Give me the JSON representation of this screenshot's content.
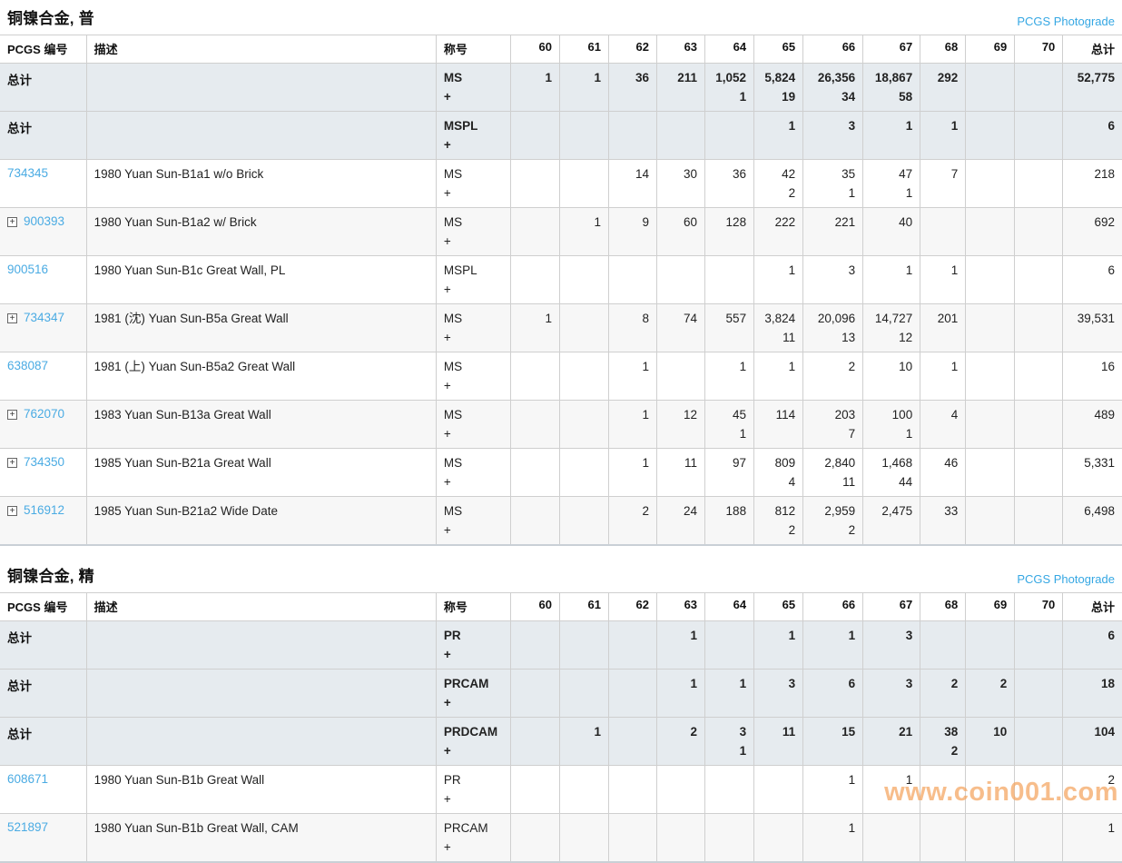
{
  "watermark": "www.coin001.com",
  "colors": {
    "link_blue": "#35a7e3",
    "id_link_blue": "#4aabe3",
    "total_row_bg": "#e6ebef",
    "stripe_bg": "#f7f7f7",
    "border": "#cfcfcf",
    "watermark_orange": "#f5a55f"
  },
  "header": {
    "id": "PCGS 编号",
    "desc": "描述",
    "designation": "称号",
    "total": "总计"
  },
  "grade_columns": [
    "60",
    "61",
    "62",
    "63",
    "64",
    "65",
    "66",
    "67",
    "68",
    "69",
    "70"
  ],
  "sections": [
    {
      "title": "铜镍合金, 普",
      "photograde_link": "PCGS Photograde",
      "rows": [
        {
          "type": "total",
          "expand": false,
          "stripe": false,
          "id_label": "总计",
          "desc": "",
          "designation": "MS",
          "plus": "+",
          "grades": [
            [
              "1",
              ""
            ],
            [
              "1",
              ""
            ],
            [
              "36",
              ""
            ],
            [
              "211",
              ""
            ],
            [
              "1,052",
              "1"
            ],
            [
              "5,824",
              "19"
            ],
            [
              "26,356",
              "34"
            ],
            [
              "18,867",
              "58"
            ],
            [
              "292",
              ""
            ],
            [
              "",
              ""
            ],
            [
              "",
              ""
            ]
          ],
          "total": "52,775"
        },
        {
          "type": "total",
          "expand": false,
          "stripe": false,
          "id_label": "总计",
          "desc": "",
          "designation": "MSPL",
          "plus": "+",
          "grades": [
            [
              "",
              ""
            ],
            [
              "",
              ""
            ],
            [
              "",
              ""
            ],
            [
              "",
              ""
            ],
            [
              "",
              ""
            ],
            [
              "1",
              ""
            ],
            [
              "3",
              ""
            ],
            [
              "1",
              ""
            ],
            [
              "1",
              ""
            ],
            [
              "",
              ""
            ],
            [
              "",
              ""
            ]
          ],
          "total": "6"
        },
        {
          "type": "item",
          "expand": false,
          "stripe": false,
          "id_label": "734345",
          "desc": "1980 Yuan Sun-B1a1 w/o Brick",
          "designation": "MS",
          "plus": "+",
          "grades": [
            [
              "",
              ""
            ],
            [
              "",
              ""
            ],
            [
              "14",
              ""
            ],
            [
              "30",
              ""
            ],
            [
              "36",
              ""
            ],
            [
              "42",
              "2"
            ],
            [
              "35",
              "1"
            ],
            [
              "47",
              "1"
            ],
            [
              "7",
              ""
            ],
            [
              "",
              ""
            ],
            [
              "",
              ""
            ]
          ],
          "total": "218"
        },
        {
          "type": "item",
          "expand": true,
          "stripe": true,
          "id_label": "900393",
          "desc": "1980 Yuan Sun-B1a2 w/ Brick",
          "designation": "MS",
          "plus": "+",
          "grades": [
            [
              "",
              ""
            ],
            [
              "1",
              ""
            ],
            [
              "9",
              ""
            ],
            [
              "60",
              ""
            ],
            [
              "128",
              ""
            ],
            [
              "222",
              ""
            ],
            [
              "221",
              ""
            ],
            [
              "40",
              ""
            ],
            [
              "",
              ""
            ],
            [
              "",
              ""
            ],
            [
              "",
              ""
            ]
          ],
          "total": "692"
        },
        {
          "type": "item",
          "expand": false,
          "stripe": false,
          "id_label": "900516",
          "desc": "1980 Yuan Sun-B1c Great Wall, PL",
          "designation": "MSPL",
          "plus": "+",
          "grades": [
            [
              "",
              ""
            ],
            [
              "",
              ""
            ],
            [
              "",
              ""
            ],
            [
              "",
              ""
            ],
            [
              "",
              ""
            ],
            [
              "1",
              ""
            ],
            [
              "3",
              ""
            ],
            [
              "1",
              ""
            ],
            [
              "1",
              ""
            ],
            [
              "",
              ""
            ],
            [
              "",
              ""
            ]
          ],
          "total": "6"
        },
        {
          "type": "item",
          "expand": true,
          "stripe": true,
          "id_label": "734347",
          "desc": "1981 (沈) Yuan Sun-B5a Great Wall",
          "designation": "MS",
          "plus": "+",
          "grades": [
            [
              "1",
              ""
            ],
            [
              "",
              ""
            ],
            [
              "8",
              ""
            ],
            [
              "74",
              ""
            ],
            [
              "557",
              ""
            ],
            [
              "3,824",
              "11"
            ],
            [
              "20,096",
              "13"
            ],
            [
              "14,727",
              "12"
            ],
            [
              "201",
              ""
            ],
            [
              "",
              ""
            ],
            [
              "",
              ""
            ]
          ],
          "total": "39,531"
        },
        {
          "type": "item",
          "expand": false,
          "stripe": false,
          "id_label": "638087",
          "desc": "1981 (上) Yuan Sun-B5a2 Great Wall",
          "designation": "MS",
          "plus": "+",
          "grades": [
            [
              "",
              ""
            ],
            [
              "",
              ""
            ],
            [
              "1",
              ""
            ],
            [
              "",
              ""
            ],
            [
              "1",
              ""
            ],
            [
              "1",
              ""
            ],
            [
              "2",
              ""
            ],
            [
              "10",
              ""
            ],
            [
              "1",
              ""
            ],
            [
              "",
              ""
            ],
            [
              "",
              ""
            ]
          ],
          "total": "16"
        },
        {
          "type": "item",
          "expand": true,
          "stripe": true,
          "id_label": "762070",
          "desc": "1983 Yuan Sun-B13a Great Wall",
          "designation": "MS",
          "plus": "+",
          "grades": [
            [
              "",
              ""
            ],
            [
              "",
              ""
            ],
            [
              "1",
              ""
            ],
            [
              "12",
              ""
            ],
            [
              "45",
              "1"
            ],
            [
              "114",
              ""
            ],
            [
              "203",
              "7"
            ],
            [
              "100",
              "1"
            ],
            [
              "4",
              ""
            ],
            [
              "",
              ""
            ],
            [
              "",
              ""
            ]
          ],
          "total": "489"
        },
        {
          "type": "item",
          "expand": true,
          "stripe": false,
          "id_label": "734350",
          "desc": "1985 Yuan Sun-B21a Great Wall",
          "designation": "MS",
          "plus": "+",
          "grades": [
            [
              "",
              ""
            ],
            [
              "",
              ""
            ],
            [
              "1",
              ""
            ],
            [
              "11",
              ""
            ],
            [
              "97",
              ""
            ],
            [
              "809",
              "4"
            ],
            [
              "2,840",
              "11"
            ],
            [
              "1,468",
              "44"
            ],
            [
              "46",
              ""
            ],
            [
              "",
              ""
            ],
            [
              "",
              ""
            ]
          ],
          "total": "5,331"
        },
        {
          "type": "item",
          "expand": true,
          "stripe": true,
          "id_label": "516912",
          "desc": "1985 Yuan Sun-B21a2 Wide Date",
          "designation": "MS",
          "plus": "+",
          "grades": [
            [
              "",
              ""
            ],
            [
              "",
              ""
            ],
            [
              "2",
              ""
            ],
            [
              "24",
              ""
            ],
            [
              "188",
              ""
            ],
            [
              "812",
              "2"
            ],
            [
              "2,959",
              "2"
            ],
            [
              "2,475",
              ""
            ],
            [
              "33",
              ""
            ],
            [
              "",
              ""
            ],
            [
              "",
              ""
            ]
          ],
          "total": "6,498"
        }
      ]
    },
    {
      "title": "铜镍合金, 精",
      "photograde_link": "PCGS Photograde",
      "rows": [
        {
          "type": "total",
          "expand": false,
          "stripe": false,
          "id_label": "总计",
          "desc": "",
          "designation": "PR",
          "plus": "+",
          "grades": [
            [
              "",
              ""
            ],
            [
              "",
              ""
            ],
            [
              "",
              ""
            ],
            [
              "1",
              ""
            ],
            [
              "",
              ""
            ],
            [
              "1",
              ""
            ],
            [
              "1",
              ""
            ],
            [
              "3",
              ""
            ],
            [
              "",
              ""
            ],
            [
              "",
              ""
            ],
            [
              "",
              ""
            ]
          ],
          "total": "6"
        },
        {
          "type": "total",
          "expand": false,
          "stripe": false,
          "id_label": "总计",
          "desc": "",
          "designation": "PRCAM",
          "plus": "+",
          "grades": [
            [
              "",
              ""
            ],
            [
              "",
              ""
            ],
            [
              "",
              ""
            ],
            [
              "1",
              ""
            ],
            [
              "1",
              ""
            ],
            [
              "3",
              ""
            ],
            [
              "6",
              ""
            ],
            [
              "3",
              ""
            ],
            [
              "2",
              ""
            ],
            [
              "2",
              ""
            ],
            [
              "",
              ""
            ]
          ],
          "total": "18"
        },
        {
          "type": "total",
          "expand": false,
          "stripe": false,
          "id_label": "总计",
          "desc": "",
          "designation": "PRDCAM",
          "plus": "+",
          "grades": [
            [
              "",
              ""
            ],
            [
              "1",
              ""
            ],
            [
              "",
              ""
            ],
            [
              "2",
              ""
            ],
            [
              "3",
              "1"
            ],
            [
              "11",
              ""
            ],
            [
              "15",
              ""
            ],
            [
              "21",
              ""
            ],
            [
              "38",
              "2"
            ],
            [
              "10",
              ""
            ],
            [
              "",
              ""
            ]
          ],
          "total": "104"
        },
        {
          "type": "item",
          "expand": false,
          "stripe": false,
          "id_label": "608671",
          "desc": "1980 Yuan Sun-B1b Great Wall",
          "designation": "PR",
          "plus": "+",
          "grades": [
            [
              "",
              ""
            ],
            [
              "",
              ""
            ],
            [
              "",
              ""
            ],
            [
              "",
              ""
            ],
            [
              "",
              ""
            ],
            [
              "",
              ""
            ],
            [
              "1",
              ""
            ],
            [
              "1",
              ""
            ],
            [
              "",
              ""
            ],
            [
              "",
              ""
            ],
            [
              "",
              ""
            ]
          ],
          "total": "2"
        },
        {
          "type": "item",
          "expand": false,
          "stripe": true,
          "id_label": "521897",
          "desc": "1980 Yuan Sun-B1b Great Wall, CAM",
          "designation": "PRCAM",
          "plus": "+",
          "grades": [
            [
              "",
              ""
            ],
            [
              "",
              ""
            ],
            [
              "",
              ""
            ],
            [
              "",
              ""
            ],
            [
              "",
              ""
            ],
            [
              "",
              ""
            ],
            [
              "1",
              ""
            ],
            [
              "",
              ""
            ],
            [
              "",
              ""
            ],
            [
              "",
              ""
            ],
            [
              "",
              ""
            ]
          ],
          "total": "1"
        }
      ]
    }
  ]
}
